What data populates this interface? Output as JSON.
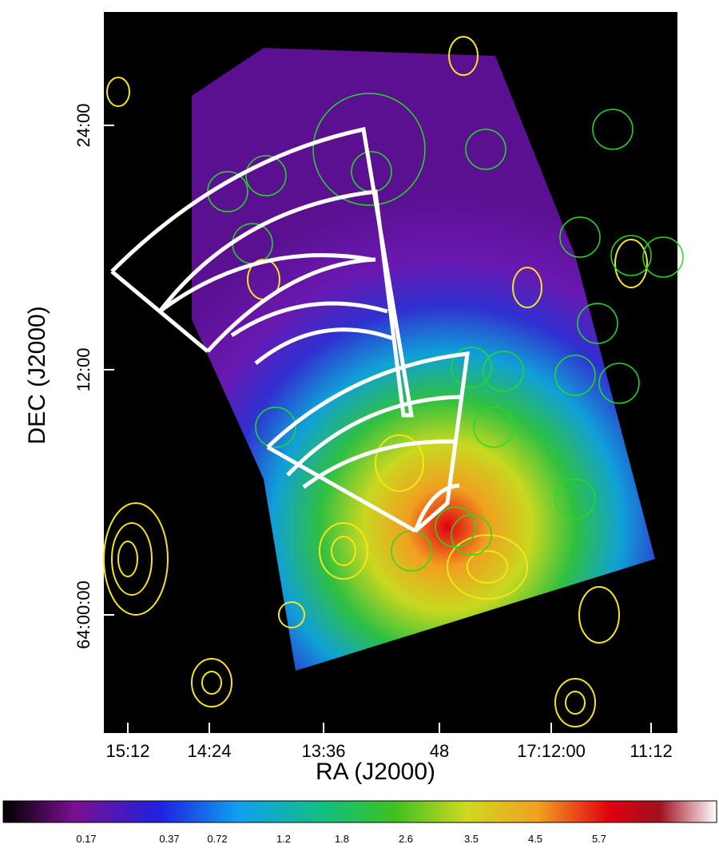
{
  "axes": {
    "x_label": "RA (J2000)",
    "y_label": "DEC (J2000)",
    "x_ticks": [
      "15:12",
      "14:24",
      "13:36",
      "48",
      "17:12:00",
      "11:12"
    ],
    "y_ticks": [
      "24:00",
      "12:00",
      "64:00:00"
    ]
  },
  "colorbar": {
    "ticks": [
      "0.17",
      "0.37",
      "0.72",
      "1.2",
      "1.8",
      "2.6",
      "3.5",
      "4.5",
      "5.7"
    ]
  }
}
